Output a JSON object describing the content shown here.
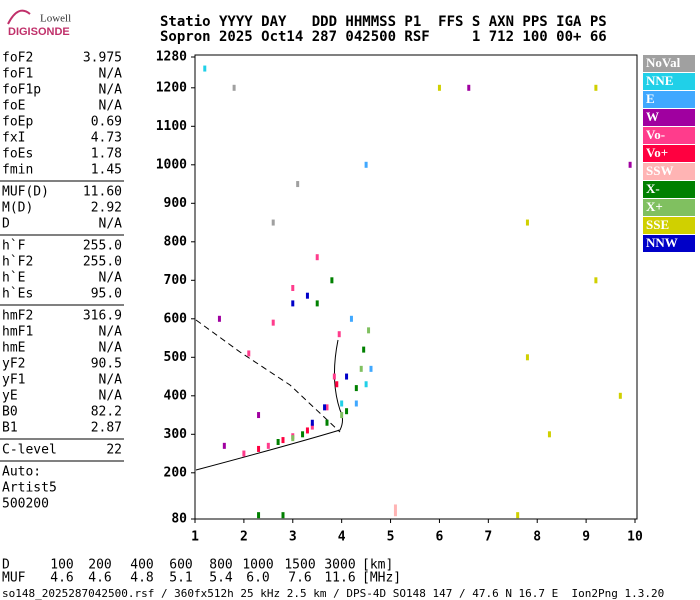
{
  "logo": {
    "line1": "Lowell",
    "line2": "DIGISONDE"
  },
  "header": {
    "line1": "Statio YYYY DAY   DDD HHMMSS P1  FFS S AXN PPS IGA PS",
    "line2": "Sopron 2025 Oct14 287 042500 RSF     1 712 100 00+ 66"
  },
  "params": [
    [
      [
        "foF2",
        "3.975"
      ],
      [
        "foF1",
        "N/A"
      ],
      [
        "foF1p",
        "N/A"
      ],
      [
        "foE",
        "N/A"
      ],
      [
        "foEp",
        "0.69"
      ],
      [
        "fxI",
        "4.73"
      ],
      [
        "foEs",
        "1.78"
      ],
      [
        "fmin",
        "1.45"
      ]
    ],
    [
      [
        "MUF(D)",
        "11.60"
      ],
      [
        "M(D)",
        "2.92"
      ],
      [
        "D",
        "N/A"
      ]
    ],
    [
      [
        "h`F",
        "255.0"
      ],
      [
        "h`F2",
        "255.0"
      ],
      [
        "h`E",
        "N/A"
      ],
      [
        "h`Es",
        "95.0"
      ]
    ],
    [
      [
        "hmF2",
        "316.9"
      ],
      [
        "hmF1",
        "N/A"
      ],
      [
        "hmE",
        "N/A"
      ],
      [
        "yF2",
        "90.5"
      ],
      [
        "yF1",
        "N/A"
      ],
      [
        "yE",
        "N/A"
      ],
      [
        "B0",
        "82.2"
      ],
      [
        "B1",
        "2.87"
      ]
    ],
    [
      [
        "C-level",
        "22"
      ]
    ]
  ],
  "notes": [
    "Auto:",
    "Artist5",
    "500200"
  ],
  "muf_table": {
    "d_label": "D",
    "d_values": [
      "100",
      "200",
      "400",
      "600",
      "800",
      "1000",
      "1500",
      "3000"
    ],
    "d_unit": "[km]",
    "muf_label": "MUF",
    "muf_values": [
      "4.6",
      "4.6",
      "4.8",
      "5.1",
      "5.4",
      "6.0",
      "7.6",
      "11.6"
    ],
    "muf_unit": "[MHz]"
  },
  "footer": "so148_2025287042500.rsf / 360fx512h 25 kHz 2.5 km / DPS-4D SO148 147 / 47.6 N 16.7 E  Ion2Png 1.3.20",
  "chart_data": {
    "type": "scatter",
    "xlim": [
      1,
      10
    ],
    "xticks": [
      1,
      2,
      3,
      4,
      5,
      6,
      7,
      8,
      9,
      10
    ],
    "ylim": [
      80,
      1280
    ],
    "yticks": [
      80,
      200,
      300,
      400,
      500,
      600,
      700,
      800,
      900,
      1000,
      1100,
      1200,
      1280
    ],
    "series": [
      {
        "name": "NoVal",
        "color": "#a0a0a0",
        "x": [
          2.6,
          3.1,
          1.8
        ],
        "values": [
          850,
          950,
          1200
        ]
      },
      {
        "name": "NNE",
        "color": "#20d0e8",
        "x": [
          4.0,
          4.5,
          1.2
        ],
        "values": [
          380,
          430,
          1250
        ]
      },
      {
        "name": "E",
        "color": "#40a8ff",
        "x": [
          4.3,
          4.5,
          4.6,
          4.2
        ],
        "values": [
          380,
          1000,
          470,
          600
        ]
      },
      {
        "name": "W",
        "color": "#a000a0",
        "x": [
          1.6,
          1.5,
          2.3,
          6.6,
          9.9
        ],
        "values": [
          270,
          600,
          350,
          1200,
          1000
        ]
      },
      {
        "name": "Vo-",
        "color": "#ff3c8c",
        "x": [
          2.0,
          2.5,
          3.0,
          3.4,
          3.7,
          3.85,
          3.95,
          2.1,
          2.6,
          3.0,
          3.5
        ],
        "values": [
          250,
          270,
          295,
          320,
          370,
          450,
          560,
          510,
          590,
          680,
          760
        ]
      },
      {
        "name": "Vo+",
        "color": "#ff0040",
        "x": [
          2.3,
          2.8,
          3.3,
          3.9
        ],
        "values": [
          262,
          285,
          310,
          430
        ]
      },
      {
        "name": "SSW",
        "color": "#ffb4b4",
        "x": [
          5.1,
          5.1
        ],
        "values": [
          110,
          95
        ]
      },
      {
        "name": "X-",
        "color": "#008000",
        "x": [
          2.7,
          3.2,
          3.7,
          4.1,
          4.3,
          4.45,
          3.5,
          3.8,
          2.3,
          2.8
        ],
        "values": [
          280,
          300,
          330,
          360,
          420,
          520,
          640,
          700,
          90,
          90
        ]
      },
      {
        "name": "X+",
        "color": "#80c060",
        "x": [
          3.0,
          4.0,
          4.4,
          4.55
        ],
        "values": [
          290,
          350,
          470,
          570
        ]
      },
      {
        "name": "SSE",
        "color": "#d0d000",
        "x": [
          7.8,
          7.8,
          8.25,
          9.2,
          9.2,
          9.7,
          6.0,
          7.6
        ],
        "values": [
          850,
          500,
          300,
          1200,
          700,
          400,
          1200,
          90
        ]
      },
      {
        "name": "NNW",
        "color": "#0000c8",
        "x": [
          3.4,
          3.65,
          4.1,
          3.0,
          3.3
        ],
        "values": [
          330,
          370,
          450,
          640,
          660
        ]
      }
    ]
  }
}
